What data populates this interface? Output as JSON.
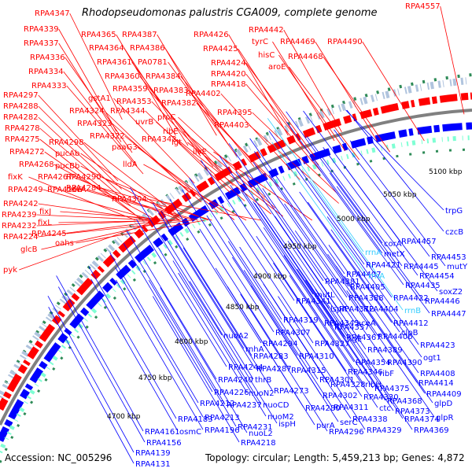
{
  "title": "Rhodopseudomonas palustris CGA009, complete genome",
  "accession": "Accession: NC_005296",
  "summary": "Topology: circular; Length: 5,459,213 bp; Genes: 4,872",
  "colors": {
    "forward": "#ff0000",
    "reverse": "#0000ff",
    "rrna": "#33ccff",
    "backbone": "#808080",
    "gc_ticks": "#2e8b57"
  },
  "kbp_labels": [
    "5100 kbp",
    "5050 kbp",
    "5000 kbp",
    "4950 kbp",
    "4900 kbp",
    "4850 kbp",
    "4800 kbp",
    "4750 kbp",
    "4700 kbp"
  ],
  "forward_genes": [
    "RPA4347",
    "RPA4339",
    "RPA4337",
    "RPA4336",
    "RPA4334",
    "RPA4333",
    "RPA4297",
    "RPA4288",
    "RPA4282",
    "RPA4278",
    "RPA4275",
    "RPA4272",
    "RPA4268",
    "fixK",
    "RPA4249",
    "RPA4242",
    "RPA4239",
    "RPA4232",
    "RPA4224",
    "glcB",
    "pyk",
    "RPA4365",
    "RPA4364",
    "RPA4361",
    "RPA4360",
    "RPA4359",
    "RPA4353",
    "gstA1",
    "RPA4344",
    "RPA4324",
    "RPA4323",
    "RPA4322",
    "RPA4298",
    "pucAb",
    "pucBb",
    "RPA4290",
    "RPA4284",
    "RPA4267",
    "RPA4266",
    "fixJ",
    "fixL",
    "RPA4245",
    "ndvA",
    "oahs",
    "RPA4387",
    "RPA4386",
    "PA0781",
    "RPA4384",
    "RPA4383",
    "RPA4382",
    "proC",
    "uvrB",
    "ribE",
    "RPA4342",
    "lgt",
    "paaG3",
    "lldA",
    "RPA4304",
    "RPA4426",
    "RPA4425",
    "RPA4424",
    "RPA4420",
    "RPA4418",
    "RPA4402",
    "RPA4395",
    "RPA4403",
    "ilvE",
    "RPA4442",
    "tyrC",
    "hisC",
    "aroE",
    "RPA4469",
    "RPA4468",
    "RPA4490",
    "RPA4557"
  ],
  "reverse_genes": [
    "trpG",
    "czcB",
    "RPA4457",
    "corA",
    "metX",
    "RPA4453",
    "mutY",
    "rrnA",
    "RPA4421",
    "RPA4445",
    "RPA4454",
    "RPA4381",
    "RPA4407",
    "RPA4405",
    "rrnA",
    "RPA4435",
    "soxZ2",
    "mutL",
    "RPA4388",
    "RPA4422",
    "RPA4446",
    "RPA4341",
    "RPA4372",
    "lspA",
    "aceA",
    "RPA4404",
    "rrnB",
    "RPA4447",
    "RPA4319",
    "RPA4345",
    "RPA4412",
    "clpB",
    "RPA4307",
    "RPA4357",
    "RPA4367",
    "RPA4406",
    "RPA4294",
    "RPA4327",
    "RPA4389",
    "RPA4423",
    "RPA4283",
    "RPA4310",
    "ligE",
    "RPA4354",
    "RPA4390",
    "ogt1",
    "nuoA2",
    "rnhA",
    "RPA4287",
    "RPA4315",
    "RPA4346",
    "ribF",
    "RPA4244",
    "RPA4301",
    "RPA4328",
    "ribH",
    "RPA4408",
    "RPA4240",
    "thrB",
    "RPA4273",
    "RPA4375",
    "RPA4414",
    "RPA4226",
    "nuoN2",
    "RPA4302",
    "RPA4330",
    "RPA4368",
    "RPA4409",
    "RPA4212",
    "RPA4237",
    "nuoCD",
    "RPA4311",
    "ctc",
    "RPA4373",
    "glpD",
    "RPA4183",
    "RPA4213",
    "nuoM2",
    "RPA4280",
    "RPA4338",
    "RPA4374",
    "osmC",
    "RPA4196",
    "RPA4231",
    "ispH",
    "purA",
    "serC",
    "RPA4329",
    "RPA4369",
    "glpR",
    "RPA4161",
    "nuoL2",
    "RPA4218",
    "RPA4296",
    "RPA4156",
    "RPA4139",
    "RPA4131"
  ]
}
